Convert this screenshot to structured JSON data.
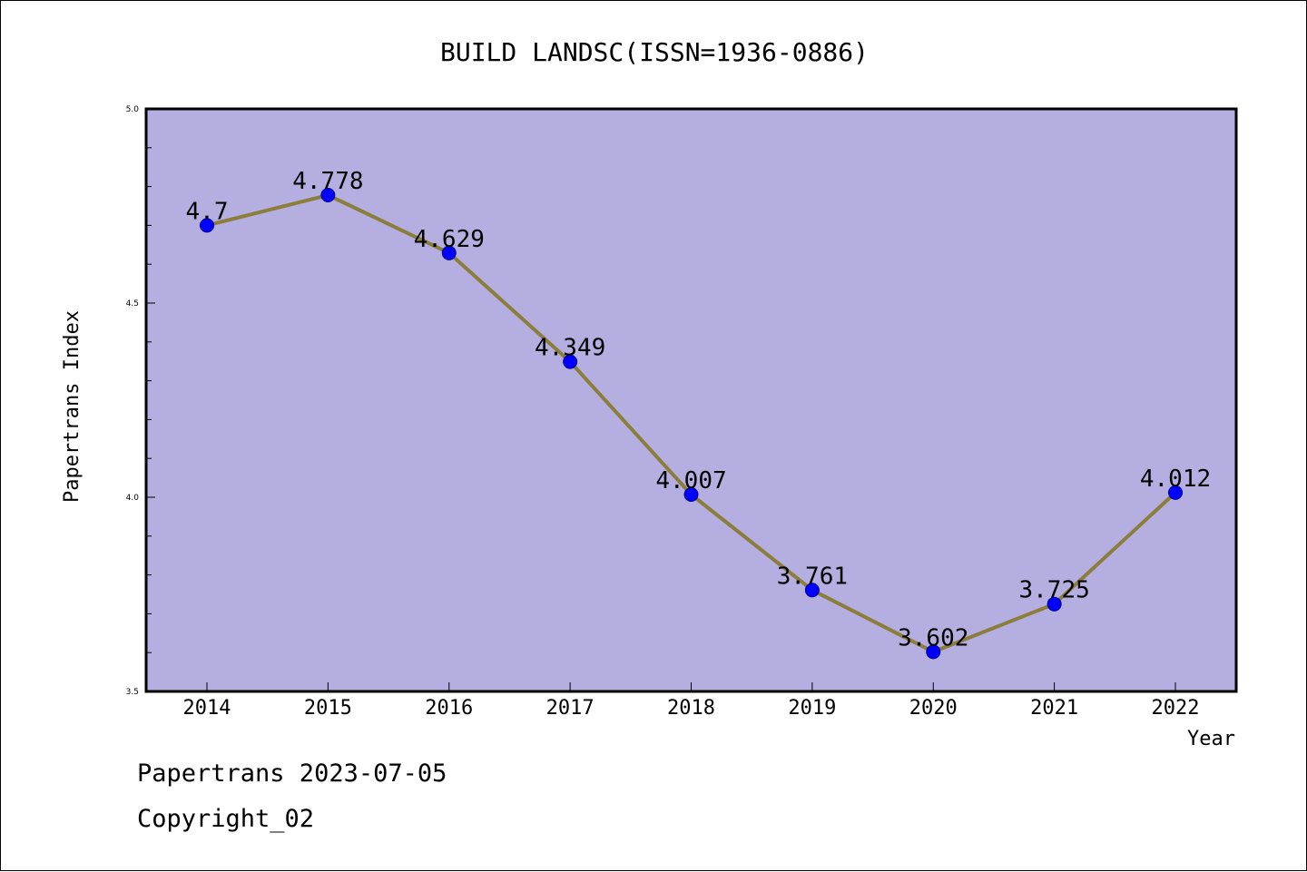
{
  "chart_data": {
    "type": "line",
    "title": "BUILD LANDSC(ISSN=1936-0886)",
    "xlabel": "Year",
    "ylabel": "Papertrans Index",
    "x": [
      "2014",
      "2015",
      "2016",
      "2017",
      "2018",
      "2019",
      "2020",
      "2021",
      "2022"
    ],
    "series": [
      {
        "values": [
          4.7,
          4.778,
          4.629,
          4.349,
          4.007,
          3.761,
          3.602,
          3.725,
          4.012
        ],
        "data_labels": [
          "4.7",
          "4.778",
          "4.629",
          "4.349",
          "4.007",
          "3.761",
          "3.602",
          "3.725",
          "4.012"
        ]
      }
    ],
    "ylim": [
      3.5,
      5.0
    ],
    "yticks": [
      "3.5",
      "4.0",
      "4.5",
      "5.0"
    ],
    "grid": false,
    "colors": {
      "plot_background": "#b5aee1",
      "line": "#8b7d3a",
      "marker": "#0000ff",
      "marker_edge": "#00008b"
    }
  },
  "footer": {
    "line1": "Papertrans 2023-07-05",
    "line2": "Copyright_02"
  }
}
